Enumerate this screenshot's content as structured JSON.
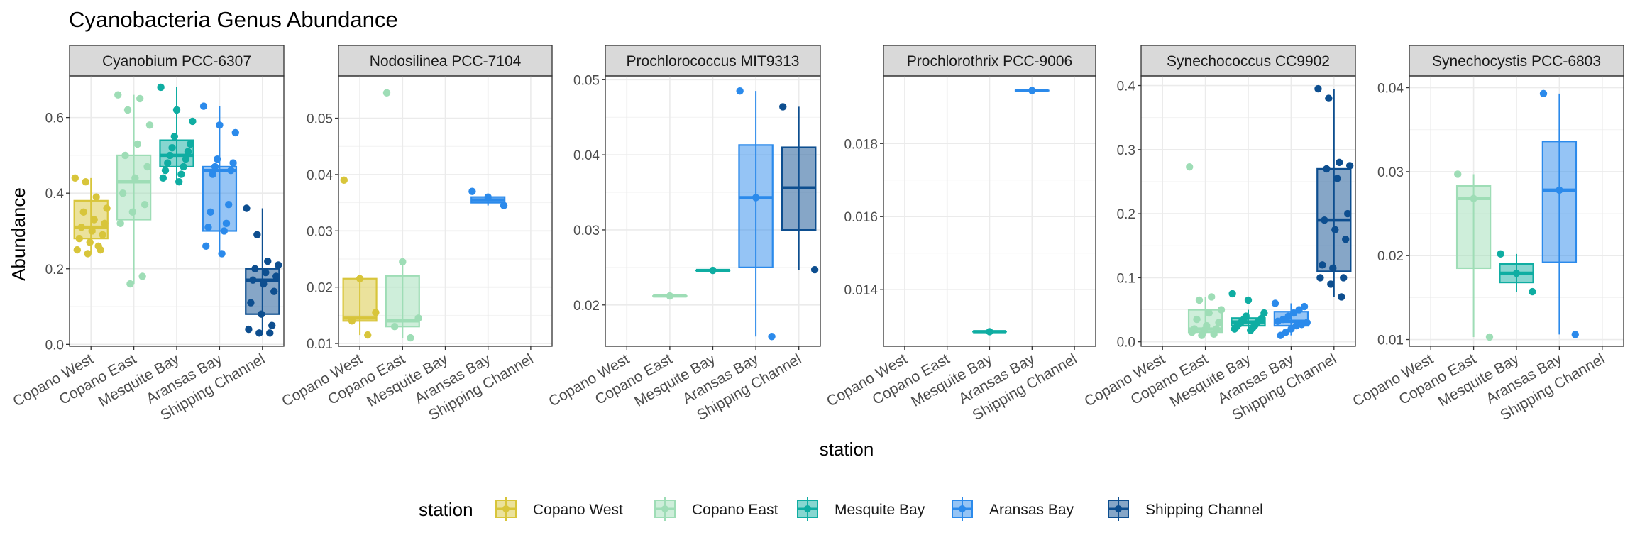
{
  "chart_data": {
    "type": "boxplot",
    "title": "Cyanobacteria Genus Abundance",
    "xlabel": "station",
    "ylabel": "Abundance",
    "stations": [
      "Copano West",
      "Copano East",
      "Mesquite Bay",
      "Aransas Bay",
      "Shipping Channel"
    ],
    "colors": {
      "Copano West": "#D8C53A",
      "Copano East": "#9EDDB6",
      "Mesquite Bay": "#0FADA2",
      "Aransas Bay": "#2B8AEB",
      "Shipping Channel": "#0D4E8F"
    },
    "legend": {
      "title": "station",
      "position": "bottom",
      "items": [
        "Copano West",
        "Copano East",
        "Mesquite Bay",
        "Aransas Bay",
        "Shipping Channel"
      ]
    },
    "grid": true,
    "facets": [
      {
        "title": "Cyanobium PCC-6307",
        "ylim": [
          -0.005,
          0.71
        ],
        "yticks": [
          0.0,
          0.2,
          0.4,
          0.6
        ],
        "ytick_labels": [
          "0.0",
          "0.2",
          "0.4",
          "0.6"
        ],
        "boxes": [
          {
            "station": "Copano West",
            "min": 0.24,
            "q1": 0.28,
            "median": 0.31,
            "q3": 0.38,
            "max": 0.44,
            "points": [
              0.44,
              0.43,
              0.39,
              0.36,
              0.35,
              0.33,
              0.32,
              0.31,
              0.3,
              0.29,
              0.28,
              0.27,
              0.25,
              0.25,
              0.24,
              0.26
            ]
          },
          {
            "station": "Copano East",
            "min": 0.16,
            "q1": 0.33,
            "median": 0.43,
            "q3": 0.5,
            "max": 0.66,
            "points": [
              0.66,
              0.65,
              0.62,
              0.58,
              0.53,
              0.5,
              0.47,
              0.44,
              0.4,
              0.37,
              0.35,
              0.32,
              0.18,
              0.16
            ]
          },
          {
            "station": "Mesquite Bay",
            "min": 0.43,
            "q1": 0.47,
            "median": 0.5,
            "q3": 0.54,
            "max": 0.68,
            "points": [
              0.68,
              0.62,
              0.59,
              0.55,
              0.53,
              0.52,
              0.51,
              0.5,
              0.49,
              0.48,
              0.47,
              0.46,
              0.45,
              0.44,
              0.43
            ]
          },
          {
            "station": "Aransas Bay",
            "min": 0.24,
            "q1": 0.3,
            "median": 0.46,
            "q3": 0.47,
            "max": 0.63,
            "points": [
              0.63,
              0.58,
              0.56,
              0.49,
              0.48,
              0.47,
              0.46,
              0.45,
              0.37,
              0.35,
              0.32,
              0.31,
              0.3,
              0.26,
              0.24
            ]
          },
          {
            "station": "Shipping Channel",
            "min": 0.03,
            "q1": 0.08,
            "median": 0.17,
            "q3": 0.2,
            "max": 0.36,
            "points": [
              0.36,
              0.29,
              0.22,
              0.21,
              0.2,
              0.19,
              0.18,
              0.17,
              0.16,
              0.14,
              0.11,
              0.08,
              0.05,
              0.04,
              0.03,
              0.03
            ]
          }
        ]
      },
      {
        "title": "Nodosilinea PCC-7104",
        "ylim": [
          0.0095,
          0.0575
        ],
        "yticks": [
          0.01,
          0.02,
          0.03,
          0.04,
          0.05
        ],
        "ytick_labels": [
          "0.01",
          "0.02",
          "0.03",
          "0.04",
          "0.05"
        ],
        "boxes": [
          {
            "station": "Copano West",
            "min": 0.0115,
            "q1": 0.014,
            "median": 0.0145,
            "q3": 0.0215,
            "max": 0.0215,
            "points": [
              0.039,
              0.0215,
              0.0155,
              0.014,
              0.0115
            ]
          },
          {
            "station": "Copano East",
            "min": 0.011,
            "q1": 0.013,
            "median": 0.014,
            "q3": 0.022,
            "max": 0.0245,
            "points": [
              0.0545,
              0.0245,
              0.0145,
              0.013,
              0.011
            ]
          },
          {
            "station": "Aransas Bay",
            "min": 0.0345,
            "q1": 0.035,
            "median": 0.0355,
            "q3": 0.036,
            "max": 0.0365,
            "points": [
              0.037,
              0.036,
              0.0345
            ]
          }
        ]
      },
      {
        "title": "Prochlorococcus MIT9313",
        "ylim": [
          0.0145,
          0.0505
        ],
        "yticks": [
          0.02,
          0.03,
          0.04,
          0.05
        ],
        "ytick_labels": [
          "0.02",
          "0.03",
          "0.04",
          "0.05"
        ],
        "boxes": [
          {
            "station": "Copano East",
            "min": 0.0212,
            "q1": 0.0212,
            "median": 0.0212,
            "q3": 0.0212,
            "max": 0.0212,
            "points": [
              0.0212
            ]
          },
          {
            "station": "Mesquite Bay",
            "min": 0.0246,
            "q1": 0.0246,
            "median": 0.0246,
            "q3": 0.0246,
            "max": 0.0246,
            "points": [
              0.0246
            ]
          },
          {
            "station": "Aransas Bay",
            "min": 0.0158,
            "q1": 0.025,
            "median": 0.0343,
            "q3": 0.0413,
            "max": 0.0485,
            "points": [
              0.0485,
              0.0343,
              0.0158
            ]
          },
          {
            "station": "Shipping Channel",
            "min": 0.0247,
            "q1": 0.03,
            "median": 0.0356,
            "q3": 0.041,
            "max": 0.0464,
            "points": [
              0.0464,
              0.0247
            ]
          }
        ]
      },
      {
        "title": "Prochlorothrix PCC-9006",
        "ylim": [
          0.01245,
          0.01985
        ],
        "yticks": [
          0.014,
          0.016,
          0.018
        ],
        "ytick_labels": [
          "0.014",
          "0.016",
          "0.018"
        ],
        "boxes": [
          {
            "station": "Mesquite Bay",
            "min": 0.01285,
            "q1": 0.01285,
            "median": 0.01285,
            "q3": 0.01285,
            "max": 0.01285,
            "points": [
              0.01285
            ]
          },
          {
            "station": "Aransas Bay",
            "min": 0.01945,
            "q1": 0.01945,
            "median": 0.01945,
            "q3": 0.01945,
            "max": 0.01945,
            "points": [
              0.01945
            ]
          }
        ]
      },
      {
        "title": "Synechococcus CC9902",
        "ylim": [
          -0.007,
          0.415
        ],
        "yticks": [
          0.0,
          0.1,
          0.2,
          0.3,
          0.4
        ],
        "ytick_labels": [
          "0.0",
          "0.1",
          "0.2",
          "0.3",
          "0.4"
        ],
        "boxes": [
          {
            "station": "Copano East",
            "min": 0.01,
            "q1": 0.015,
            "median": 0.02,
            "q3": 0.05,
            "max": 0.07,
            "points": [
              0.273,
              0.07,
              0.065,
              0.05,
              0.045,
              0.035,
              0.03,
              0.025,
              0.02,
              0.02,
              0.018,
              0.015,
              0.012,
              0.01
            ]
          },
          {
            "station": "Mesquite Bay",
            "min": 0.018,
            "q1": 0.025,
            "median": 0.031,
            "q3": 0.037,
            "max": 0.05,
            "points": [
              0.075,
              0.065,
              0.045,
              0.04,
              0.037,
              0.035,
              0.033,
              0.031,
              0.03,
              0.028,
              0.026,
              0.024,
              0.022,
              0.02,
              0.018
            ]
          },
          {
            "station": "Aransas Bay",
            "min": 0.01,
            "q1": 0.025,
            "median": 0.032,
            "q3": 0.047,
            "max": 0.06,
            "points": [
              0.06,
              0.055,
              0.05,
              0.045,
              0.04,
              0.035,
              0.032,
              0.03,
              0.027,
              0.025,
              0.02,
              0.015,
              0.01
            ]
          },
          {
            "station": "Shipping Channel",
            "min": 0.07,
            "q1": 0.11,
            "median": 0.19,
            "q3": 0.27,
            "max": 0.395,
            "points": [
              0.395,
              0.38,
              0.28,
              0.275,
              0.27,
              0.255,
              0.2,
              0.19,
              0.175,
              0.16,
              0.12,
              0.115,
              0.1,
              0.1,
              0.09,
              0.07
            ]
          }
        ]
      },
      {
        "title": "Synechocystis PCC-6803",
        "ylim": [
          0.0092,
          0.0414
        ],
        "yticks": [
          0.01,
          0.02,
          0.03,
          0.04
        ],
        "ytick_labels": [
          "0.01",
          "0.02",
          "0.03",
          "0.04"
        ],
        "boxes": [
          {
            "station": "Copano East",
            "min": 0.0103,
            "q1": 0.0185,
            "median": 0.0268,
            "q3": 0.0283,
            "max": 0.0297,
            "points": [
              0.0297,
              0.0268,
              0.0103
            ]
          },
          {
            "station": "Mesquite Bay",
            "min": 0.0157,
            "q1": 0.0168,
            "median": 0.0179,
            "q3": 0.019,
            "max": 0.0202,
            "points": [
              0.0202,
              0.0179,
              0.0157
            ]
          },
          {
            "station": "Aransas Bay",
            "min": 0.0106,
            "q1": 0.0192,
            "median": 0.0278,
            "q3": 0.0336,
            "max": 0.0393,
            "points": [
              0.0393,
              0.0278,
              0.0106
            ]
          }
        ]
      }
    ]
  }
}
